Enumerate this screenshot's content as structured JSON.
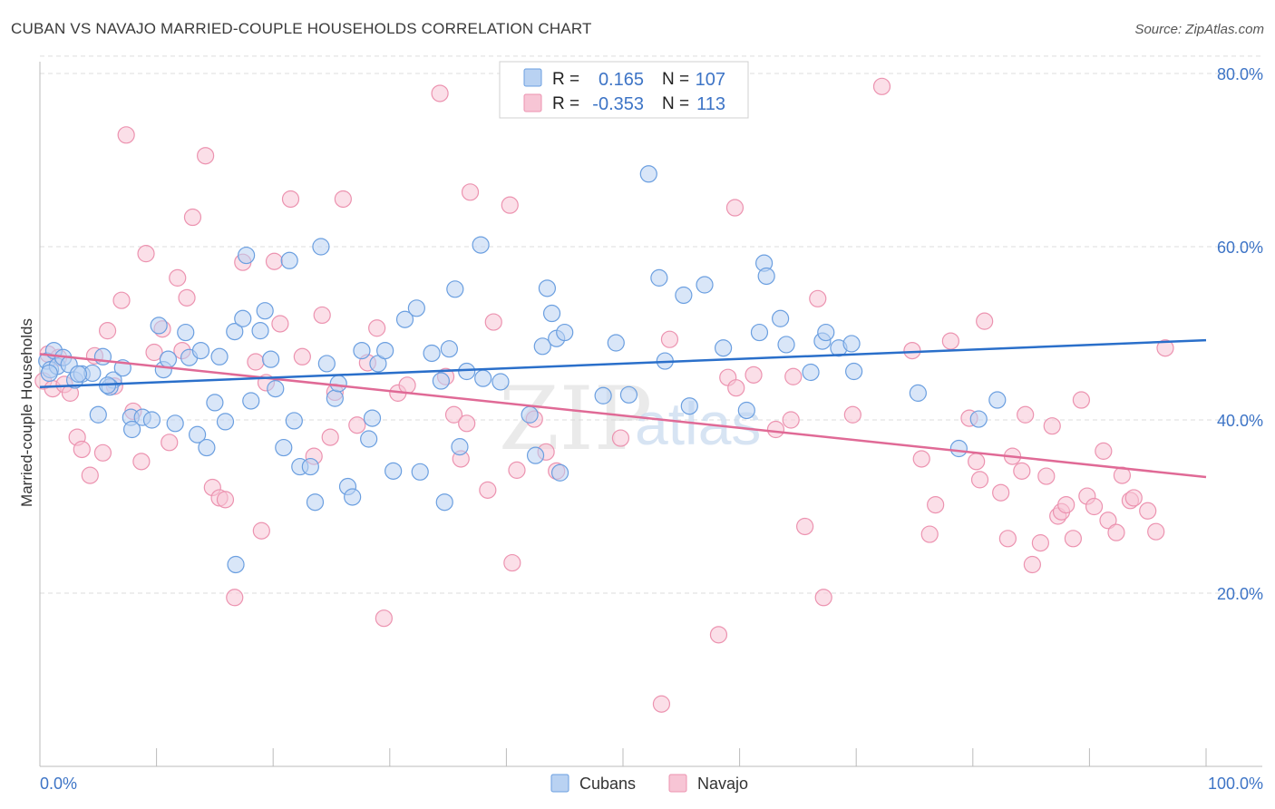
{
  "title": "CUBAN VS NAVAJO MARRIED-COUPLE HOUSEHOLDS CORRELATION CHART",
  "source": "Source: ZipAtlas.com",
  "watermark": {
    "zip": "ZIP",
    "atlas": "atlas"
  },
  "colors": {
    "cubans_fill": "#b9d2f2",
    "cubans_stroke": "#6b9fe0",
    "cubans_line": "#2a6fca",
    "navajo_fill": "#f7c5d5",
    "navajo_stroke": "#ec93b0",
    "navajo_line": "#e06a96",
    "axis_label": "#3d74c6",
    "grid": "#dddddd"
  },
  "stats_box": {
    "rows": [
      {
        "series": "Cubans",
        "r_label": "R =",
        "r_value": "0.165",
        "n_label": "N =",
        "n_value": "107"
      },
      {
        "series": "Navajo",
        "r_label": "R =",
        "r_value": "-0.353",
        "n_label": "N =",
        "n_value": "113"
      }
    ]
  },
  "chart_data": {
    "type": "scatter",
    "title": "CUBAN VS NAVAJO MARRIED-COUPLE HOUSEHOLDS CORRELATION CHART",
    "xlabel": "",
    "ylabel": "Married-couple Households",
    "xlim": [
      0,
      100
    ],
    "ylim": [
      0,
      82
    ],
    "x_tick_labels": [
      "0.0%",
      "100.0%"
    ],
    "y_ticks": [
      20,
      40,
      60,
      80
    ],
    "y_tick_labels": [
      "20.0%",
      "40.0%",
      "60.0%",
      "80.0%"
    ],
    "grid": true,
    "legend": [
      "Cubans",
      "Navajo"
    ],
    "series": [
      {
        "name": "Cubans",
        "r": 0.165,
        "n": 107,
        "trend": {
          "x0": 0,
          "y0": 43.8,
          "x1": 100,
          "y1": 49.2
        },
        "points": [
          [
            0.6,
            46.8
          ],
          [
            0.9,
            45.8
          ],
          [
            1.2,
            48.0
          ],
          [
            1.5,
            46.2
          ],
          [
            2.0,
            47.2
          ],
          [
            2.5,
            46.4
          ],
          [
            3.0,
            44.6
          ],
          [
            3.6,
            45.3
          ],
          [
            4.5,
            45.4
          ],
          [
            5.4,
            47.3
          ],
          [
            5.0,
            40.6
          ],
          [
            6.3,
            44.6
          ],
          [
            6.0,
            43.8
          ],
          [
            7.1,
            46.0
          ],
          [
            7.8,
            40.3
          ],
          [
            7.9,
            38.9
          ],
          [
            8.8,
            40.3
          ],
          [
            9.6,
            40.0
          ],
          [
            10.6,
            45.8
          ],
          [
            10.2,
            50.9
          ],
          [
            11.6,
            39.6
          ],
          [
            12.8,
            47.2
          ],
          [
            12.5,
            50.1
          ],
          [
            13.8,
            48.0
          ],
          [
            13.5,
            38.3
          ],
          [
            14.3,
            36.8
          ],
          [
            15.4,
            47.3
          ],
          [
            15.9,
            39.8
          ],
          [
            16.7,
            50.2
          ],
          [
            16.8,
            23.3
          ],
          [
            17.4,
            51.7
          ],
          [
            17.7,
            59.0
          ],
          [
            18.1,
            42.2
          ],
          [
            18.9,
            50.3
          ],
          [
            19.3,
            52.6
          ],
          [
            19.8,
            47.0
          ],
          [
            20.2,
            43.6
          ],
          [
            20.9,
            36.8
          ],
          [
            21.4,
            58.4
          ],
          [
            21.8,
            39.9
          ],
          [
            22.3,
            34.6
          ],
          [
            23.2,
            34.6
          ],
          [
            23.6,
            30.5
          ],
          [
            24.1,
            60.0
          ],
          [
            24.6,
            46.5
          ],
          [
            25.3,
            42.5
          ],
          [
            25.6,
            44.2
          ],
          [
            26.4,
            32.3
          ],
          [
            26.8,
            31.1
          ],
          [
            27.6,
            48.0
          ],
          [
            28.2,
            37.8
          ],
          [
            28.5,
            40.2
          ],
          [
            29.0,
            46.5
          ],
          [
            29.6,
            48.0
          ],
          [
            30.3,
            34.1
          ],
          [
            31.3,
            51.6
          ],
          [
            32.3,
            52.9
          ],
          [
            32.6,
            34.0
          ],
          [
            33.6,
            47.7
          ],
          [
            34.4,
            44.5
          ],
          [
            34.7,
            30.5
          ],
          [
            35.1,
            48.2
          ],
          [
            35.6,
            55.1
          ],
          [
            36.0,
            36.9
          ],
          [
            36.6,
            45.6
          ],
          [
            37.8,
            60.2
          ],
          [
            38.0,
            44.8
          ],
          [
            39.5,
            44.4
          ],
          [
            42.0,
            40.6
          ],
          [
            42.5,
            35.9
          ],
          [
            43.1,
            48.5
          ],
          [
            43.5,
            55.2
          ],
          [
            43.9,
            52.3
          ],
          [
            44.3,
            49.4
          ],
          [
            44.6,
            33.9
          ],
          [
            45.0,
            50.1
          ],
          [
            48.3,
            42.8
          ],
          [
            49.4,
            48.9
          ],
          [
            50.5,
            42.9
          ],
          [
            52.2,
            68.4
          ],
          [
            53.1,
            56.4
          ],
          [
            53.6,
            46.8
          ],
          [
            55.2,
            54.4
          ],
          [
            55.7,
            41.6
          ],
          [
            57.0,
            55.6
          ],
          [
            58.6,
            48.3
          ],
          [
            60.6,
            41.1
          ],
          [
            61.7,
            50.1
          ],
          [
            62.1,
            58.1
          ],
          [
            62.3,
            56.6
          ],
          [
            63.5,
            51.7
          ],
          [
            64.0,
            48.7
          ],
          [
            66.1,
            45.5
          ],
          [
            67.1,
            49.1
          ],
          [
            67.4,
            50.1
          ],
          [
            68.5,
            48.3
          ],
          [
            69.6,
            48.8
          ],
          [
            69.8,
            45.6
          ],
          [
            75.3,
            43.1
          ],
          [
            78.8,
            36.7
          ],
          [
            80.5,
            40.1
          ],
          [
            82.1,
            42.3
          ],
          [
            0.8,
            45.4
          ],
          [
            3.3,
            45.3
          ],
          [
            5.8,
            44.0
          ],
          [
            15.0,
            42.0
          ],
          [
            11.0,
            47.0
          ]
        ]
      },
      {
        "name": "Navajo",
        "r": -0.353,
        "n": 113,
        "trend": {
          "x0": 0,
          "y0": 47.6,
          "x1": 100,
          "y1": 33.4
        },
        "points": [
          [
            0.3,
            44.5
          ],
          [
            0.7,
            47.6
          ],
          [
            1.1,
            43.6
          ],
          [
            1.6,
            47.2
          ],
          [
            2.1,
            44.1
          ],
          [
            2.6,
            43.1
          ],
          [
            3.2,
            38.0
          ],
          [
            3.6,
            36.6
          ],
          [
            4.3,
            33.6
          ],
          [
            4.7,
            47.4
          ],
          [
            5.4,
            36.2
          ],
          [
            5.8,
            50.3
          ],
          [
            6.4,
            43.9
          ],
          [
            7.0,
            53.8
          ],
          [
            7.4,
            72.9
          ],
          [
            8.0,
            41.0
          ],
          [
            8.7,
            35.2
          ],
          [
            9.1,
            59.2
          ],
          [
            9.8,
            47.8
          ],
          [
            10.5,
            50.5
          ],
          [
            11.1,
            37.4
          ],
          [
            11.8,
            56.4
          ],
          [
            12.2,
            48.0
          ],
          [
            12.6,
            54.1
          ],
          [
            13.1,
            63.4
          ],
          [
            14.2,
            70.5
          ],
          [
            14.8,
            32.2
          ],
          [
            15.4,
            31.0
          ],
          [
            15.9,
            30.8
          ],
          [
            16.7,
            19.5
          ],
          [
            17.4,
            58.2
          ],
          [
            18.5,
            46.7
          ],
          [
            19.0,
            27.2
          ],
          [
            19.4,
            44.3
          ],
          [
            20.1,
            58.3
          ],
          [
            20.6,
            51.1
          ],
          [
            21.5,
            65.5
          ],
          [
            22.5,
            47.3
          ],
          [
            23.5,
            35.8
          ],
          [
            24.2,
            52.1
          ],
          [
            24.9,
            38.0
          ],
          [
            25.3,
            43.2
          ],
          [
            26.0,
            65.5
          ],
          [
            27.2,
            39.4
          ],
          [
            28.1,
            46.6
          ],
          [
            28.9,
            50.6
          ],
          [
            29.5,
            17.1
          ],
          [
            30.7,
            43.1
          ],
          [
            31.5,
            44.0
          ],
          [
            34.3,
            77.7
          ],
          [
            34.8,
            45.0
          ],
          [
            35.5,
            40.6
          ],
          [
            36.1,
            35.5
          ],
          [
            36.6,
            39.6
          ],
          [
            36.9,
            66.3
          ],
          [
            38.4,
            31.9
          ],
          [
            38.9,
            51.3
          ],
          [
            40.5,
            23.5
          ],
          [
            40.3,
            64.8
          ],
          [
            40.9,
            34.2
          ],
          [
            42.4,
            40.1
          ],
          [
            43.4,
            36.3
          ],
          [
            44.3,
            34.1
          ],
          [
            49.8,
            37.9
          ],
          [
            53.3,
            7.2
          ],
          [
            54.0,
            49.3
          ],
          [
            58.2,
            15.2
          ],
          [
            59.0,
            44.9
          ],
          [
            59.6,
            64.5
          ],
          [
            59.7,
            43.7
          ],
          [
            61.2,
            45.2
          ],
          [
            63.1,
            38.9
          ],
          [
            64.4,
            40.0
          ],
          [
            64.6,
            45.0
          ],
          [
            65.6,
            27.7
          ],
          [
            66.7,
            54.0
          ],
          [
            67.2,
            19.5
          ],
          [
            69.7,
            40.6
          ],
          [
            72.2,
            78.5
          ],
          [
            74.8,
            48.0
          ],
          [
            75.6,
            35.5
          ],
          [
            76.3,
            26.8
          ],
          [
            76.8,
            30.2
          ],
          [
            78.1,
            49.1
          ],
          [
            79.7,
            40.2
          ],
          [
            80.3,
            35.2
          ],
          [
            80.6,
            33.1
          ],
          [
            81.0,
            51.4
          ],
          [
            82.4,
            31.6
          ],
          [
            83.0,
            26.3
          ],
          [
            83.4,
            35.8
          ],
          [
            84.2,
            34.1
          ],
          [
            84.5,
            40.6
          ],
          [
            85.1,
            23.3
          ],
          [
            85.8,
            25.8
          ],
          [
            86.3,
            33.5
          ],
          [
            86.8,
            39.3
          ],
          [
            87.3,
            28.9
          ],
          [
            87.6,
            29.4
          ],
          [
            88.0,
            30.2
          ],
          [
            88.6,
            26.3
          ],
          [
            89.3,
            42.3
          ],
          [
            89.8,
            31.2
          ],
          [
            90.4,
            30.0
          ],
          [
            91.2,
            36.4
          ],
          [
            91.6,
            28.4
          ],
          [
            92.3,
            27.0
          ],
          [
            92.8,
            33.6
          ],
          [
            93.5,
            30.7
          ],
          [
            93.8,
            31.0
          ],
          [
            95.0,
            29.5
          ],
          [
            95.7,
            27.1
          ],
          [
            96.5,
            48.3
          ]
        ]
      }
    ]
  }
}
